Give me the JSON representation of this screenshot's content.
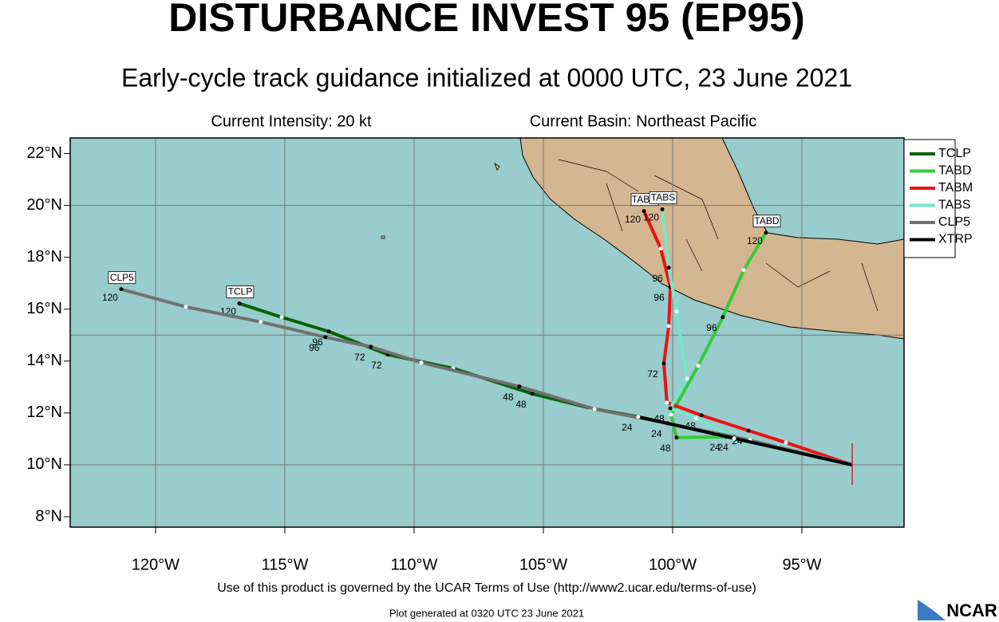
{
  "chart_data": {
    "type": "line",
    "title": "DISTURBANCE INVEST 95 (EP95)",
    "subtitle": "Early-cycle track guidance initialized at 0000 UTC, 23 June 2021",
    "intensity": "Current Intensity: 20 kt",
    "basin": "Current Basin: Northeast Pacific",
    "footer": "Use of this product is governed by the UCAR Terms of Use (http://www2.ucar.edu/terms-of-use)",
    "generated": "Plot generated at 0320 UTC   23 June 2021",
    "logo": "NCAR",
    "xlim": [
      -123.3,
      -91.05
    ],
    "ylim": [
      7.6,
      22.6
    ],
    "xticks": [
      {
        "value": -120,
        "label": "120°W"
      },
      {
        "value": -115,
        "label": "115°W"
      },
      {
        "value": -110,
        "label": "110°W"
      },
      {
        "value": -105,
        "label": "105°W"
      },
      {
        "value": -100,
        "label": "100°W"
      },
      {
        "value": -95,
        "label": "95°W"
      }
    ],
    "yticks": [
      {
        "value": 8,
        "label": "8°N"
      },
      {
        "value": 10,
        "label": "10°N"
      },
      {
        "value": 12,
        "label": "12°N"
      },
      {
        "value": 14,
        "label": "14°N"
      },
      {
        "value": 16,
        "label": "16°N"
      },
      {
        "value": 18,
        "label": "18°N"
      },
      {
        "value": 20,
        "label": "20°N"
      },
      {
        "value": 22,
        "label": "22°N"
      }
    ],
    "ygrid": [
      10,
      15,
      20
    ],
    "grid": true,
    "legend": "right",
    "series": [
      {
        "name": "TCLP",
        "color": "#006400",
        "x": [
          -93.06,
          -97.13,
          -101.33,
          -103.15,
          -105.43,
          -108.49,
          -111.02,
          -113.3,
          -115.12,
          -116.76
        ],
        "y": [
          10.0,
          10.92,
          11.85,
          12.18,
          12.74,
          13.72,
          14.25,
          15.14,
          15.69,
          16.22
        ],
        "labels": [
          null,
          null,
          "24",
          null,
          "48",
          null,
          "72",
          "96",
          null,
          "120"
        ]
      },
      {
        "name": "TABD",
        "color": "#33cc33",
        "x": [
          -93.06,
          -95.93,
          -97.93,
          -99.85,
          -100.06,
          -99.01,
          -98.06,
          -97.25,
          -96.39
        ],
        "y": [
          10.0,
          10.65,
          11.08,
          11.05,
          11.94,
          13.82,
          15.69,
          17.51,
          18.95
        ],
        "labels": [
          null,
          null,
          "24",
          "48",
          null,
          null,
          "96",
          null,
          "120"
        ]
      },
      {
        "name": "TABM",
        "color": "#ee1111",
        "x": [
          -93.06,
          -95.62,
          -97.07,
          -98.89,
          -100.22,
          -100.34,
          -100.15,
          -100.09,
          -100.46,
          -101.11
        ],
        "y": [
          10.0,
          10.86,
          11.32,
          11.91,
          12.4,
          13.91,
          15.35,
          16.86,
          18.34,
          19.78
        ],
        "labels": [
          null,
          null,
          "24",
          "48",
          null,
          "72",
          null,
          "96",
          null,
          "120"
        ]
      },
      {
        "name": "TABS",
        "color": "#77e6c8",
        "x": [
          -93.06,
          -95.93,
          -97.62,
          -99.1,
          -100.09,
          -99.44,
          -99.85,
          -100.15,
          -100.4
        ],
        "y": [
          10.0,
          10.71,
          11.08,
          11.79,
          12.18,
          13.32,
          15.91,
          17.6,
          19.85
        ],
        "labels": [
          null,
          null,
          "24",
          null,
          "48",
          null,
          null,
          "96",
          "120"
        ]
      },
      {
        "name": "CLP5",
        "color": "#707070",
        "x": [
          -93.06,
          -97.01,
          -100.19,
          -103.02,
          -105.93,
          -109.72,
          -111.67,
          -113.43,
          -115.93,
          -118.83,
          -121.33
        ],
        "y": [
          10.0,
          10.95,
          11.6,
          12.15,
          13.02,
          13.94,
          14.55,
          14.92,
          15.51,
          16.09,
          16.77
        ],
        "labels": [
          null,
          null,
          "24",
          null,
          "48",
          null,
          "72",
          "96",
          null,
          null,
          "120"
        ]
      },
      {
        "name": "XTRP",
        "color": "#000000",
        "x": [
          -93.06,
          -97.62,
          -101.33
        ],
        "y": [
          10.0,
          11.02,
          11.85
        ],
        "labels": [
          null,
          null,
          null
        ]
      }
    ]
  }
}
